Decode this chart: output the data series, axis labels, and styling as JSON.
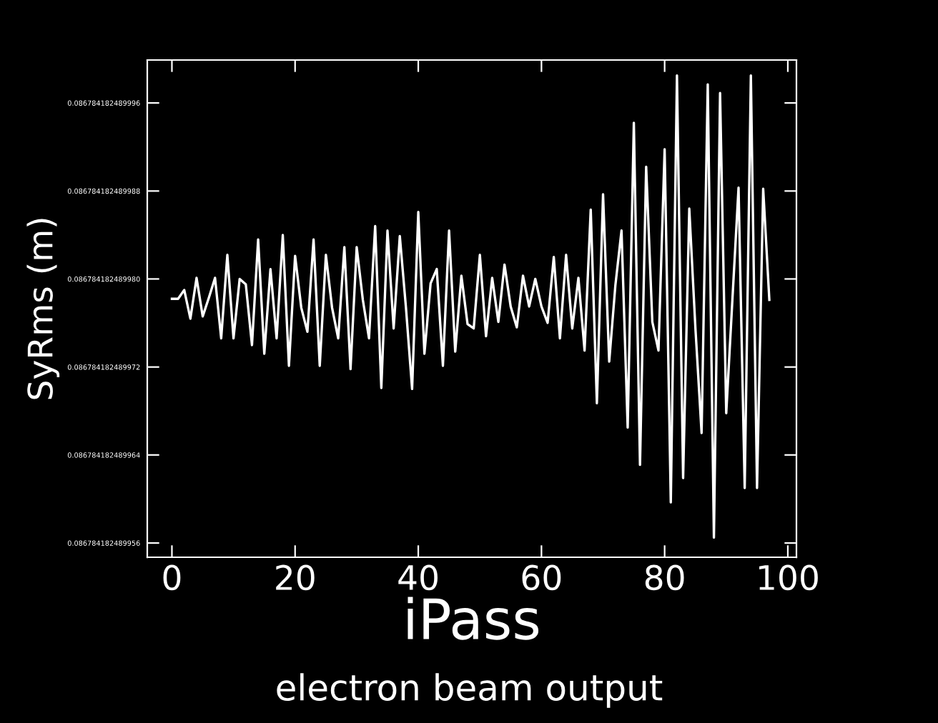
{
  "chart_data": {
    "type": "line",
    "xlabel": "iPass",
    "ylabel": "SyRms (m)",
    "annotations": [
      "electron beam output"
    ],
    "x": [
      0,
      1,
      2,
      3,
      4,
      5,
      6,
      7,
      8,
      9,
      10,
      11,
      12,
      13,
      14,
      15,
      16,
      17,
      18,
      19,
      20,
      21,
      22,
      23,
      24,
      25,
      26,
      27,
      28,
      29,
      30,
      31,
      32,
      33,
      34,
      35,
      36,
      37,
      38,
      39,
      40,
      41,
      42,
      43,
      44,
      45,
      46,
      47,
      48,
      49,
      50,
      51,
      52,
      53,
      54,
      55,
      56,
      57,
      58,
      59,
      60,
      61,
      62,
      63,
      64,
      65,
      66,
      67,
      68,
      69,
      70,
      71,
      72,
      73,
      74,
      75,
      76,
      77,
      78,
      79,
      80,
      81,
      82,
      83,
      84,
      85,
      86,
      87,
      88,
      89,
      90,
      91,
      92,
      93,
      94,
      95,
      96,
      97
    ],
    "series": [
      {
        "color": "#ffffff",
        "values": [
          0.0867841824899782,
          0.0867841824899782,
          0.086784182489979,
          0.0867841824899764,
          0.0867841824899801,
          0.0867841824899766,
          0.0867841824899783,
          0.0867841824899801,
          0.0867841824899746,
          0.0867841824899822,
          0.0867841824899746,
          0.08678418248998,
          0.0867841824899795,
          0.086784182489974,
          0.0867841824899836,
          0.0867841824899732,
          0.0867841824899809,
          0.0867841824899746,
          0.086784182489984,
          0.0867841824899721,
          0.0867841824899821,
          0.0867841824899774,
          0.0867841824899752,
          0.0867841824899836,
          0.0867841824899721,
          0.0867841824899822,
          0.0867841824899774,
          0.0867841824899746,
          0.0867841824899829,
          0.0867841824899718,
          0.0867841824899829,
          0.0867841824899781,
          0.0867841824899746,
          0.0867841824899848,
          0.0867841824899701,
          0.0867841824899844,
          0.0867841824899755,
          0.0867841824899839,
          0.0867841824899774,
          0.08678418248997,
          0.0867841824899861,
          0.0867841824899732,
          0.0867841824899796,
          0.0867841824899809,
          0.0867841824899721,
          0.0867841824899844,
          0.0867841824899734,
          0.0867841824899803,
          0.0867841824899759,
          0.0867841824899755,
          0.0867841824899822,
          0.0867841824899748,
          0.0867841824899801,
          0.0867841824899761,
          0.0867841824899813,
          0.0867841824899775,
          0.0867841824899756,
          0.0867841824899803,
          0.0867841824899775,
          0.08678418248998,
          0.0867841824899775,
          0.086784182489976,
          0.086784182489982,
          0.0867841824899746,
          0.0867841824899822,
          0.0867841824899755,
          0.0867841824899801,
          0.0867841824899735,
          0.0867841824899863,
          0.0867841824899687,
          0.0867841824899877,
          0.0867841824899725,
          0.0867841824899794,
          0.0867841824899844,
          0.0867841824899665,
          0.0867841824899942,
          0.0867841824899631,
          0.0867841824899902,
          0.0867841824899761,
          0.0867841824899735,
          0.0867841824899918,
          0.0867841824899597,
          0.0867841824899985,
          0.0867841824899619,
          0.0867841824899864,
          0.0867841824899755,
          0.086784182489966,
          0.0867841824899977,
          0.0867841824899565,
          0.0867841824899969,
          0.0867841824899678,
          0.0867841824899781,
          0.0867841824899883,
          0.086784182489961,
          0.0867841824899985,
          0.086784182489961,
          0.0867841824899882,
          0.0867841824899781
        ]
      }
    ],
    "xlim": [
      -4,
      101.4
    ],
    "xticks": [
      0,
      20,
      40,
      60,
      80,
      100
    ],
    "ylim": [
      0.0867841824899547,
      0.0867841824899999
    ],
    "yticks": [
      {
        "value": 0.086784182489956,
        "label": "0.086784182489956"
      },
      {
        "value": 0.086784182489964,
        "label": "0.086784182489964"
      },
      {
        "value": 0.086784182489972,
        "label": "0.086784182489972"
      },
      {
        "value": 0.08678418248998,
        "label": "0.086784182489980"
      },
      {
        "value": 0.086784182489988,
        "label": "0.086784182489988"
      },
      {
        "value": 0.086784182489996,
        "label": "0.086784182489996"
      }
    ],
    "grid": false,
    "legend": false,
    "marker": "none",
    "line_style": "solid"
  }
}
